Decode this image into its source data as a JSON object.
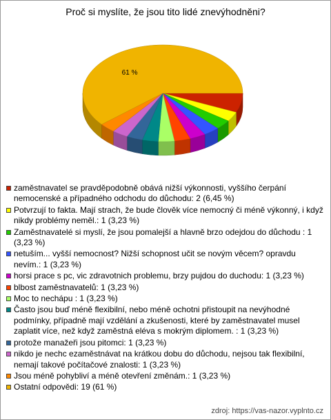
{
  "chart_data": {
    "type": "pie",
    "title": "Proč si myslíte, že jsou tito lidé znevýhodněni?",
    "categories": [
      "zaměstnavatel se pravděpodobně obává nižší výkonnosti, vyššího čerpání nemocenské a případného odchodu do důchodu: 2 (6,45 %)",
      "Potvrzují to fakta. Mají strach, že bude člověk více nemocný či méně výkonný, i když nikdy problémy neměl.: 1 (3,23 %)",
      "Zaměstnavatelé si myslí, že jsou pomalejší a hlavně brzo odejdou do důchodu : 1 (3,23 %)",
      "netuším... vyšší nemocnost? Nižší schopnost učit se novým věcem? opravdu nevím.: 1 (3,23 %)",
      "horsi prace s pc, vic zdravotnich problemu, brzy pujdou do duchodu: 1 (3,23 %)",
      "blbost zaměstnavatelů: 1 (3,23 %)",
      "Moc to nechápu : 1 (3,23 %)",
      "Často jsou buď méně flexibilní, nebo méně ochotni přistoupit na nevýhodné podmínky, případně mají vzdělání a zkušenosti, které by zaměstnavatel musel zaplatit více, než když zaměstná eléva s mokrým diplomem. : 1 (3,23 %)",
      "protože manažeři jsou pitomci: 1 (3,23 %)",
      "nikdo je nechc ezaměstnávat na krátkou dobu do důchodu, nejsou tak flexibilní, nemají takové počítačové znalosti: 1 (3,23 %)",
      "Jsou méně pohybliví a méně otevření změnám.: 1 (3,23 %)",
      "Ostatní odpovědi: 19 (61 %)"
    ],
    "values": [
      6.45,
      3.23,
      3.23,
      3.23,
      3.23,
      3.23,
      3.23,
      3.23,
      3.23,
      3.23,
      3.23,
      61
    ],
    "value_labels": [
      null,
      null,
      null,
      null,
      null,
      null,
      null,
      null,
      null,
      null,
      null,
      "61 %"
    ],
    "colors": [
      "#cc2200",
      "#ffff00",
      "#22cc00",
      "#3355ff",
      "#cc00cc",
      "#ff4400",
      "#aaff66",
      "#008888",
      "#336699",
      "#cc66cc",
      "#ff8800",
      "#f0b400"
    ],
    "source": "zdroj: https://vas-nazor.vyplnto.cz"
  }
}
